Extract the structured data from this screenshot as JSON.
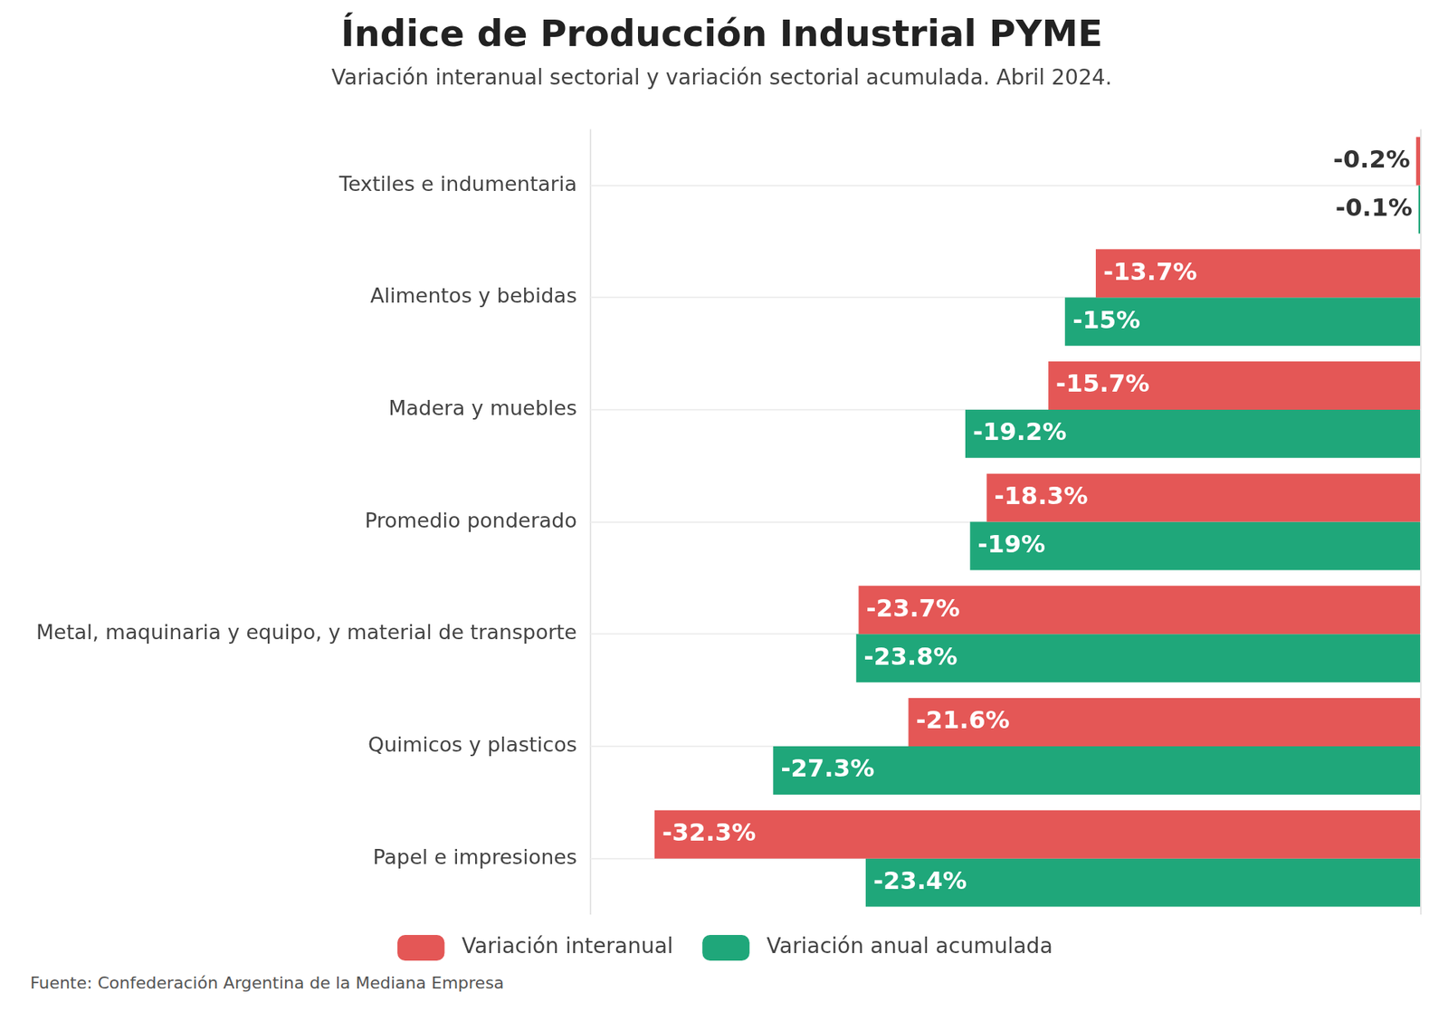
{
  "chart_data": {
    "type": "bar",
    "orientation": "horizontal",
    "title": "Índice de Producción Industrial PYME",
    "subtitle": "Variación interanual sectorial y variación sectorial acumulada. Abril 2024.",
    "source": "Fuente: Confederación Argentina de la Mediana Empresa",
    "categories": [
      "Textiles e indumentaria",
      "Alimentos y bebidas",
      "Madera y muebles",
      "Promedio ponderado",
      "Metal, maquinaria y equipo, y material de transporte",
      "Quimicos y plasticos",
      "Papel e impresiones"
    ],
    "series": [
      {
        "name": "Variación interanual",
        "color": "#e45756",
        "values": [
          -0.2,
          -13.7,
          -15.7,
          -18.3,
          -23.7,
          -21.6,
          -32.3
        ],
        "value_labels": [
          "-0.2%",
          "-13.7%",
          "-15.7%",
          "-18.3%",
          "-23.7%",
          "-21.6%",
          "-32.3%"
        ]
      },
      {
        "name": "Variación anual acumulada",
        "color": "#1fa77a",
        "values": [
          -0.1,
          -15,
          -19.2,
          -19,
          -23.8,
          -27.3,
          -23.4
        ],
        "value_labels": [
          "-0.1%",
          "-15%",
          "-19.2%",
          "-19%",
          "-23.8%",
          "-27.3%",
          "-23.4%"
        ]
      }
    ],
    "xlim": [
      -35,
      0
    ],
    "tick_labels": "y",
    "grid": true,
    "legend": "bottom",
    "data_labels": true
  }
}
